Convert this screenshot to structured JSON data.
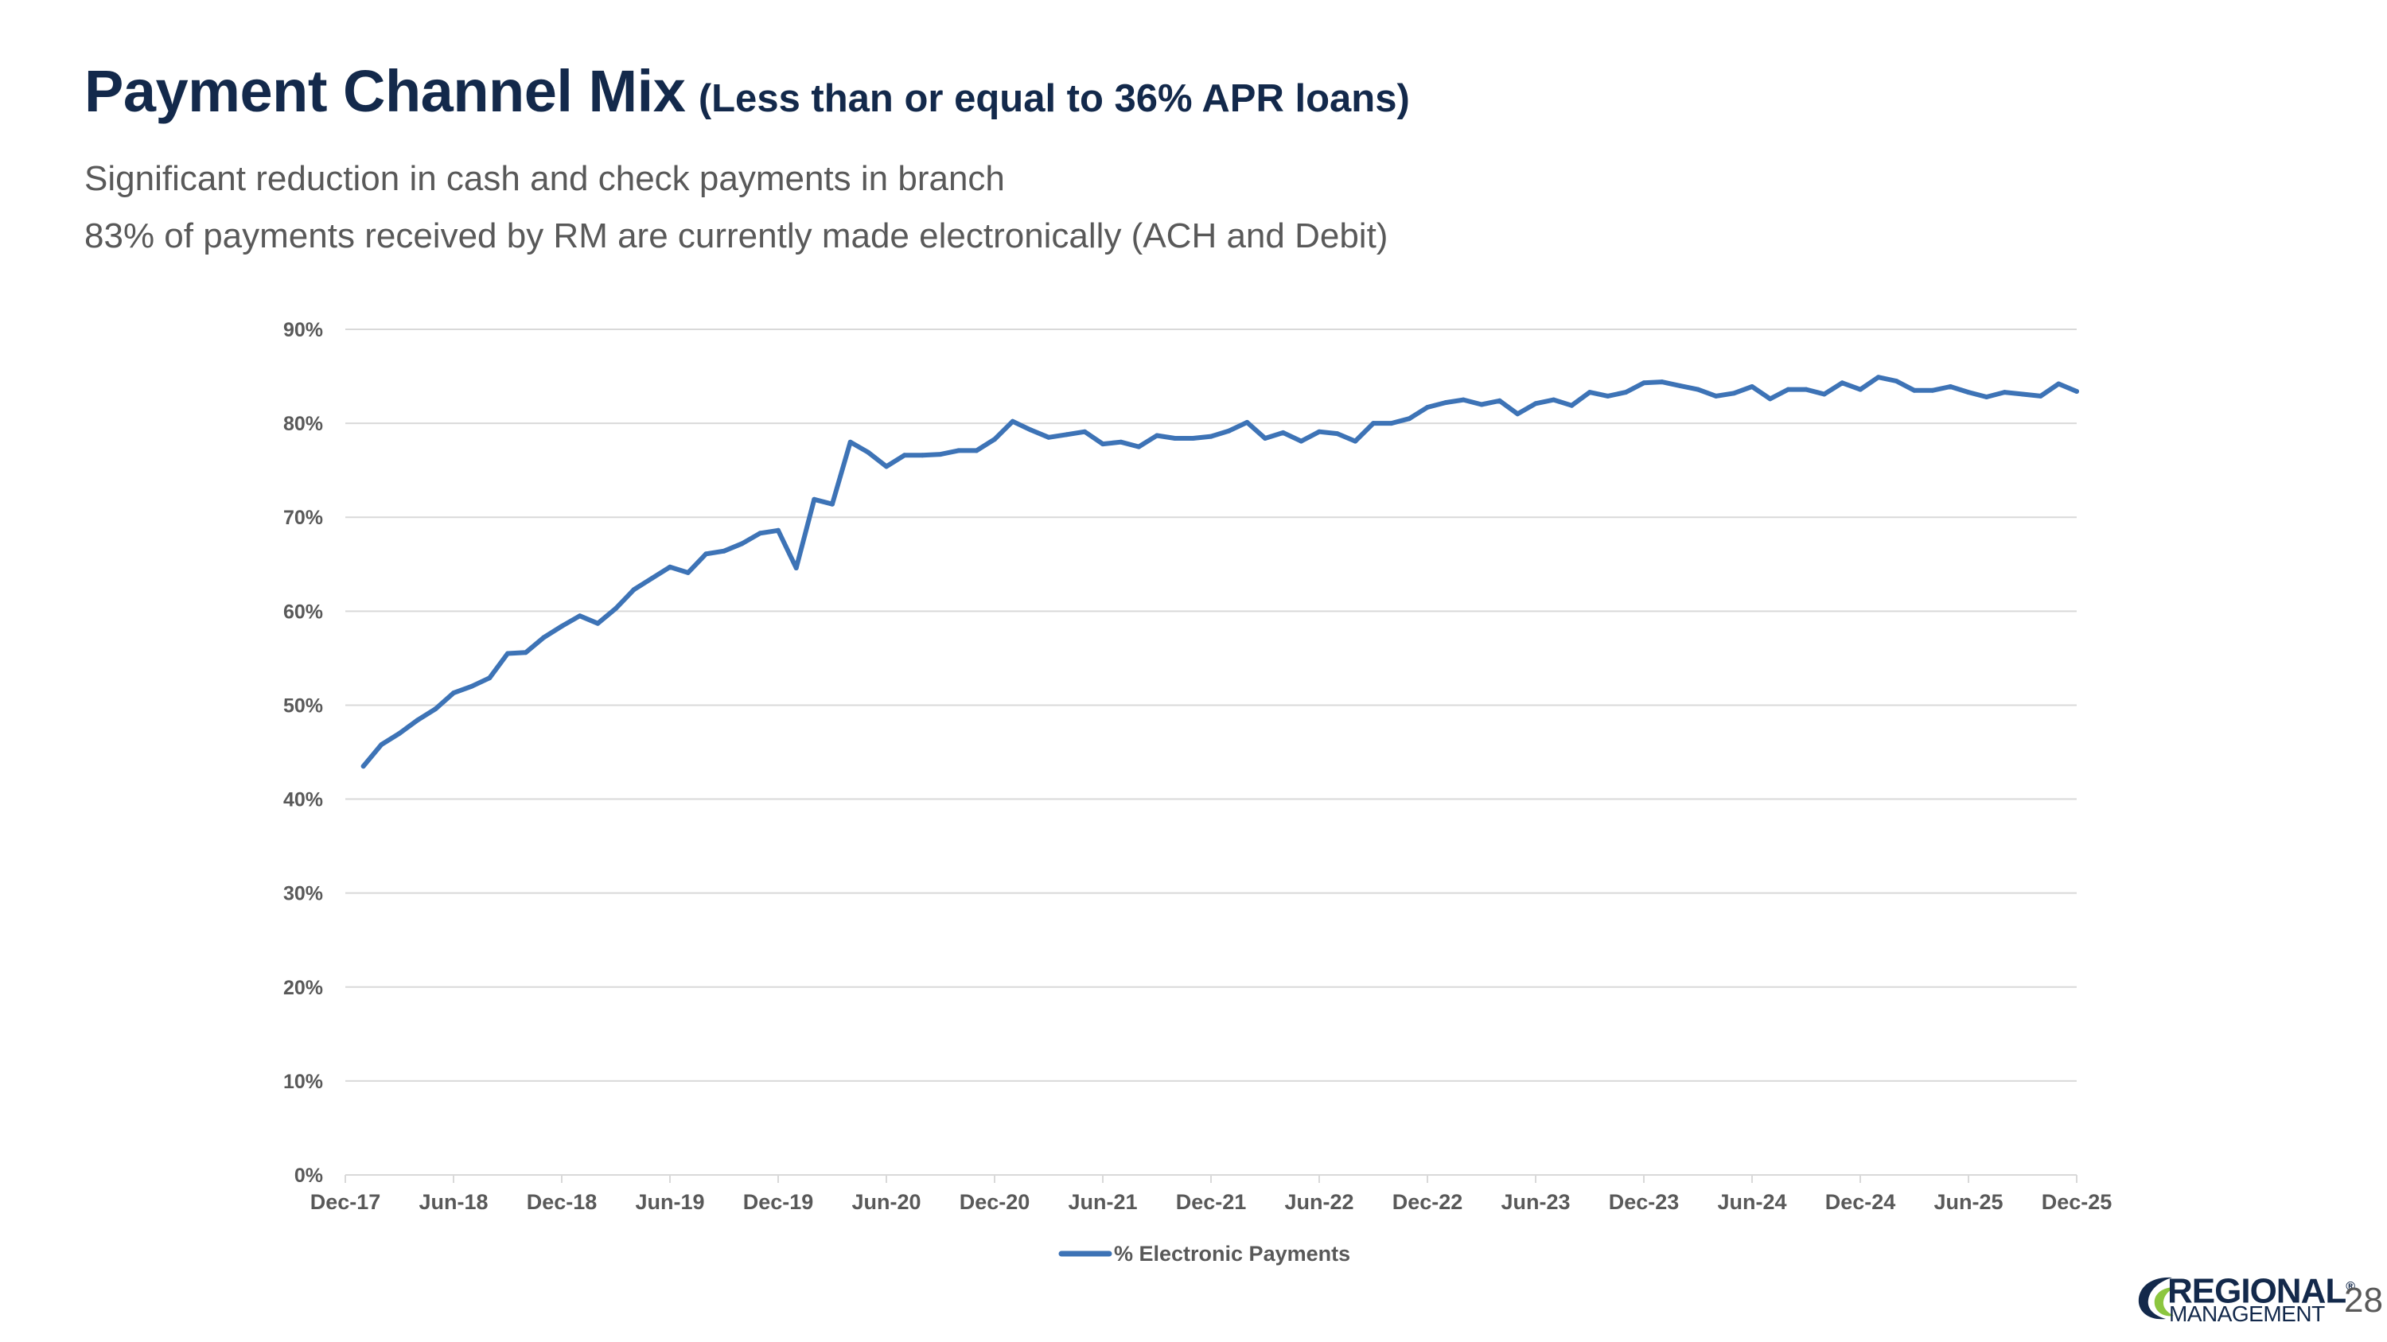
{
  "title": {
    "main": "Payment Channel Mix",
    "sub": "(Less than or equal to 36% APR loans)"
  },
  "subtitles": [
    "Significant reduction in cash and check payments in branch",
    "83% of payments received by RM are currently made electronically (ACH and Debit)"
  ],
  "colors": {
    "title": "#13294b",
    "series": "#3d73b6",
    "grid": "#d9d9d9",
    "text": "#595959",
    "accent": "#8cc63f"
  },
  "chart_data": {
    "type": "line",
    "title": "",
    "xlabel": "",
    "ylabel": "",
    "ylim": [
      0,
      90
    ],
    "grid": true,
    "legend": "bottom",
    "y_ticks": [
      "0%",
      "10%",
      "20%",
      "30%",
      "40%",
      "50%",
      "60%",
      "70%",
      "80%",
      "90%"
    ],
    "x_ticks": [
      "Dec-17",
      "Jun-18",
      "Dec-18",
      "Jun-19",
      "Dec-19",
      "Jun-20",
      "Dec-20",
      "Jun-21",
      "Dec-21",
      "Jun-22",
      "Dec-22",
      "Jun-23",
      "Dec-23",
      "Jun-24",
      "Dec-24",
      "Jun-25",
      "Dec-25"
    ],
    "x_range": [
      0,
      96
    ],
    "series": [
      {
        "name": "% Electronic Payments",
        "x": [
          1,
          2,
          3,
          4,
          5,
          6,
          7,
          8,
          9,
          10,
          11,
          12,
          13,
          14,
          15,
          16,
          17,
          18,
          19,
          20,
          21,
          22,
          23,
          24,
          25,
          26,
          27,
          28,
          29,
          30,
          31,
          32,
          33,
          34,
          35,
          36,
          37,
          38,
          39,
          40,
          41,
          42,
          43,
          44,
          45,
          46,
          47,
          48,
          49,
          50,
          51,
          52,
          53,
          54,
          55,
          56,
          57,
          58,
          59,
          60,
          61,
          62,
          63,
          64,
          65,
          66,
          67,
          68,
          69,
          70,
          71,
          72,
          73,
          74,
          75,
          76,
          77,
          78,
          79,
          80,
          81,
          82,
          83,
          84,
          85,
          86,
          87,
          88,
          89,
          90,
          91,
          92,
          93,
          94,
          95,
          96
        ],
        "values": [
          43.5,
          45.8,
          47.0,
          48.4,
          49.6,
          51.3,
          52.0,
          52.9,
          55.5,
          55.6,
          57.2,
          58.4,
          59.5,
          58.7,
          60.3,
          62.3,
          63.5,
          64.7,
          64.1,
          66.1,
          66.4,
          67.2,
          68.3,
          68.6,
          64.6,
          71.9,
          71.4,
          78.0,
          76.9,
          75.4,
          76.6,
          76.6,
          76.7,
          77.1,
          77.1,
          78.3,
          80.2,
          79.3,
          78.5,
          78.8,
          79.1,
          77.8,
          78.0,
          77.5,
          78.7,
          78.4,
          78.4,
          78.6,
          79.2,
          80.1,
          78.4,
          79.0,
          78.1,
          79.1,
          78.9,
          78.1,
          80.0,
          80.0,
          80.5,
          81.7,
          82.2,
          82.5,
          82.0,
          82.4,
          81.0,
          82.1,
          82.5,
          81.9,
          83.3,
          82.9,
          83.3,
          84.3,
          84.4,
          84.0,
          83.6,
          82.9,
          83.2,
          83.9,
          82.6,
          83.6,
          83.6,
          83.1,
          84.3,
          83.6,
          84.9,
          84.5,
          83.5,
          83.5,
          83.9,
          83.3,
          82.8,
          83.3,
          83.1,
          82.9,
          84.2,
          83.4
        ]
      }
    ]
  },
  "legend": {
    "label": "% Electronic Payments"
  },
  "logo": {
    "line1": "REGIONAL",
    "line2": "MANAGEMENT",
    "mark": "®"
  },
  "page_number": "28"
}
